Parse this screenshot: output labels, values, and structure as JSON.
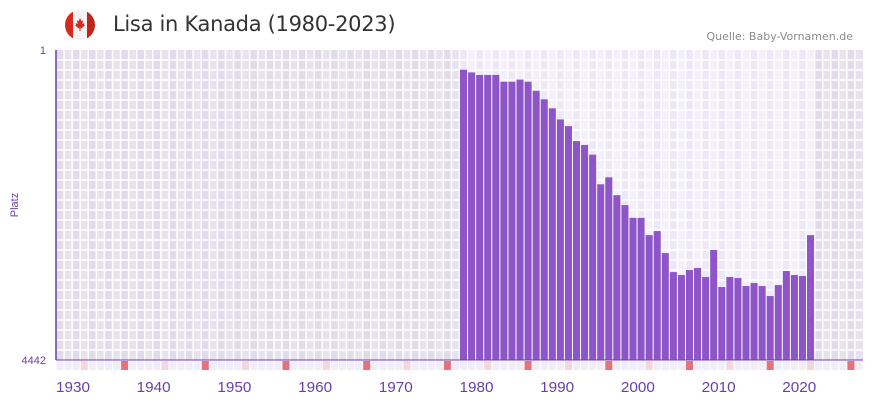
{
  "header": {
    "title": "Lisa in Kanada (1980-2023)",
    "source": "Quelle: Baby-Vornamen.de",
    "flag_icon": "canada-flag-icon"
  },
  "colors": {
    "bar": "#8e55c8",
    "axis": "#6a3fa8",
    "bg_outside": "#e4e0ed",
    "bg_inside": "#f1edfa",
    "decade_marker": "#e8707a",
    "half_decade_marker": "#f6d6dd"
  },
  "chart_data": {
    "type": "bar",
    "title": "Lisa in Kanada (1980-2023)",
    "xlabel": "",
    "ylabel": "Platz",
    "y_scale": "log",
    "y_inverted": true,
    "ylim": [
      1,
      4442
    ],
    "y_tick_labels": [
      "1",
      "4442"
    ],
    "xlim": [
      1930,
      2029
    ],
    "x_tick_labels": [
      "1930",
      "1940",
      "1950",
      "1960",
      "1970",
      "1980",
      "1990",
      "2000",
      "2010",
      "2020"
    ],
    "x": [
      1980,
      1981,
      1982,
      1983,
      1984,
      1985,
      1986,
      1987,
      1988,
      1989,
      1990,
      1991,
      1992,
      1993,
      1994,
      1995,
      1996,
      1997,
      1998,
      1999,
      2000,
      2001,
      2002,
      2003,
      2004,
      2005,
      2006,
      2007,
      2008,
      2009,
      2010,
      2011,
      2012,
      2013,
      2014,
      2015,
      2016,
      2017,
      2018,
      2019,
      2020,
      2021,
      2022,
      2023
    ],
    "values": [
      1.3,
      1.4,
      1.5,
      1.5,
      1.5,
      1.8,
      1.8,
      1.7,
      1.8,
      2.3,
      2.9,
      3.7,
      5,
      6,
      9,
      10,
      13,
      29,
      24,
      39,
      51,
      72,
      72,
      115,
      103,
      187,
      313,
      339,
      296,
      280,
      358,
      172,
      469,
      358,
      368,
      457,
      421,
      457,
      599,
      445,
      304,
      339,
      348,
      115
    ],
    "grid": true,
    "legend": "none"
  }
}
